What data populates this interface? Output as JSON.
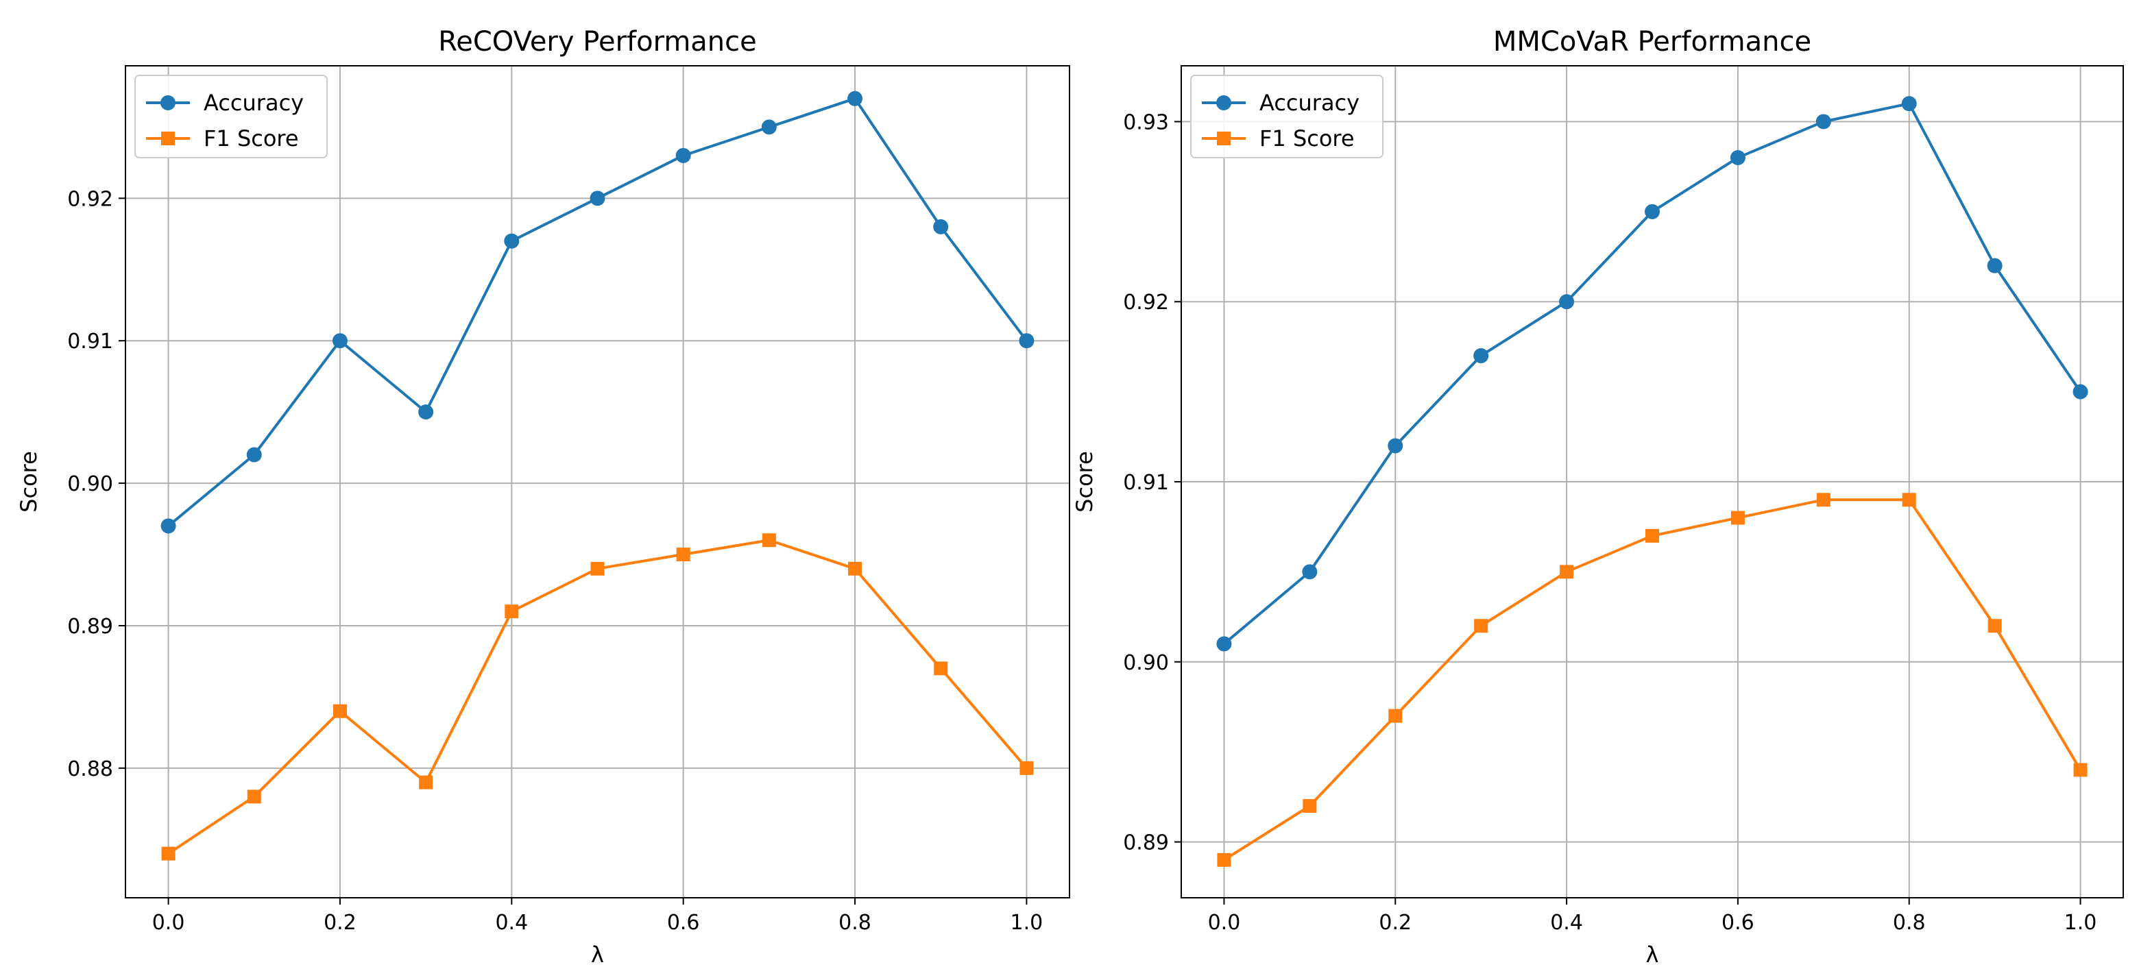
{
  "chart_data": [
    {
      "type": "line",
      "title": "ReCOVery Performance",
      "xlabel": "λ",
      "ylabel": "Score",
      "x": [
        0.0,
        0.1,
        0.2,
        0.3,
        0.4,
        0.5,
        0.6,
        0.7,
        0.8,
        0.9,
        1.0
      ],
      "xlim": [
        -0.05,
        1.05
      ],
      "ylim": [
        0.8709,
        0.9293
      ],
      "xticks": [
        0.0,
        0.2,
        0.4,
        0.6,
        0.8,
        1.0
      ],
      "xtick_labels": [
        "0.0",
        "0.2",
        "0.4",
        "0.6",
        "0.8",
        "1.0"
      ],
      "yticks": [
        0.88,
        0.89,
        0.9,
        0.91,
        0.92
      ],
      "ytick_labels": [
        "0.88",
        "0.89",
        "0.90",
        "0.91",
        "0.92"
      ],
      "grid": true,
      "legend_position": "top-left",
      "series": [
        {
          "name": "Accuracy",
          "color": "#1f77b4",
          "marker": "circle",
          "values": [
            0.897,
            0.902,
            0.91,
            0.905,
            0.917,
            0.92,
            0.923,
            0.925,
            0.927,
            0.918,
            0.91
          ]
        },
        {
          "name": "F1 Score",
          "color": "#ff7f0e",
          "marker": "square",
          "values": [
            0.874,
            0.878,
            0.884,
            0.879,
            0.891,
            0.894,
            0.895,
            0.896,
            0.894,
            0.887,
            0.88
          ]
        }
      ]
    },
    {
      "type": "line",
      "title": "MMCoVaR Performance",
      "xlabel": "λ",
      "ylabel": "Score",
      "x": [
        0.0,
        0.1,
        0.2,
        0.3,
        0.4,
        0.5,
        0.6,
        0.7,
        0.8,
        0.9,
        1.0
      ],
      "xlim": [
        -0.05,
        1.05
      ],
      "ylim": [
        0.8869,
        0.9331
      ],
      "xticks": [
        0.0,
        0.2,
        0.4,
        0.6,
        0.8,
        1.0
      ],
      "xtick_labels": [
        "0.0",
        "0.2",
        "0.4",
        "0.6",
        "0.8",
        "1.0"
      ],
      "yticks": [
        0.89,
        0.9,
        0.91,
        0.92,
        0.93
      ],
      "ytick_labels": [
        "0.89",
        "0.90",
        "0.91",
        "0.92",
        "0.93"
      ],
      "grid": true,
      "legend_position": "top-left",
      "series": [
        {
          "name": "Accuracy",
          "color": "#1f77b4",
          "marker": "circle",
          "values": [
            0.901,
            0.905,
            0.912,
            0.917,
            0.92,
            0.925,
            0.928,
            0.93,
            0.931,
            0.922,
            0.915
          ]
        },
        {
          "name": "F1 Score",
          "color": "#ff7f0e",
          "marker": "square",
          "values": [
            0.889,
            0.892,
            0.897,
            0.902,
            0.905,
            0.907,
            0.908,
            0.909,
            0.909,
            0.902,
            0.894
          ]
        }
      ]
    }
  ]
}
